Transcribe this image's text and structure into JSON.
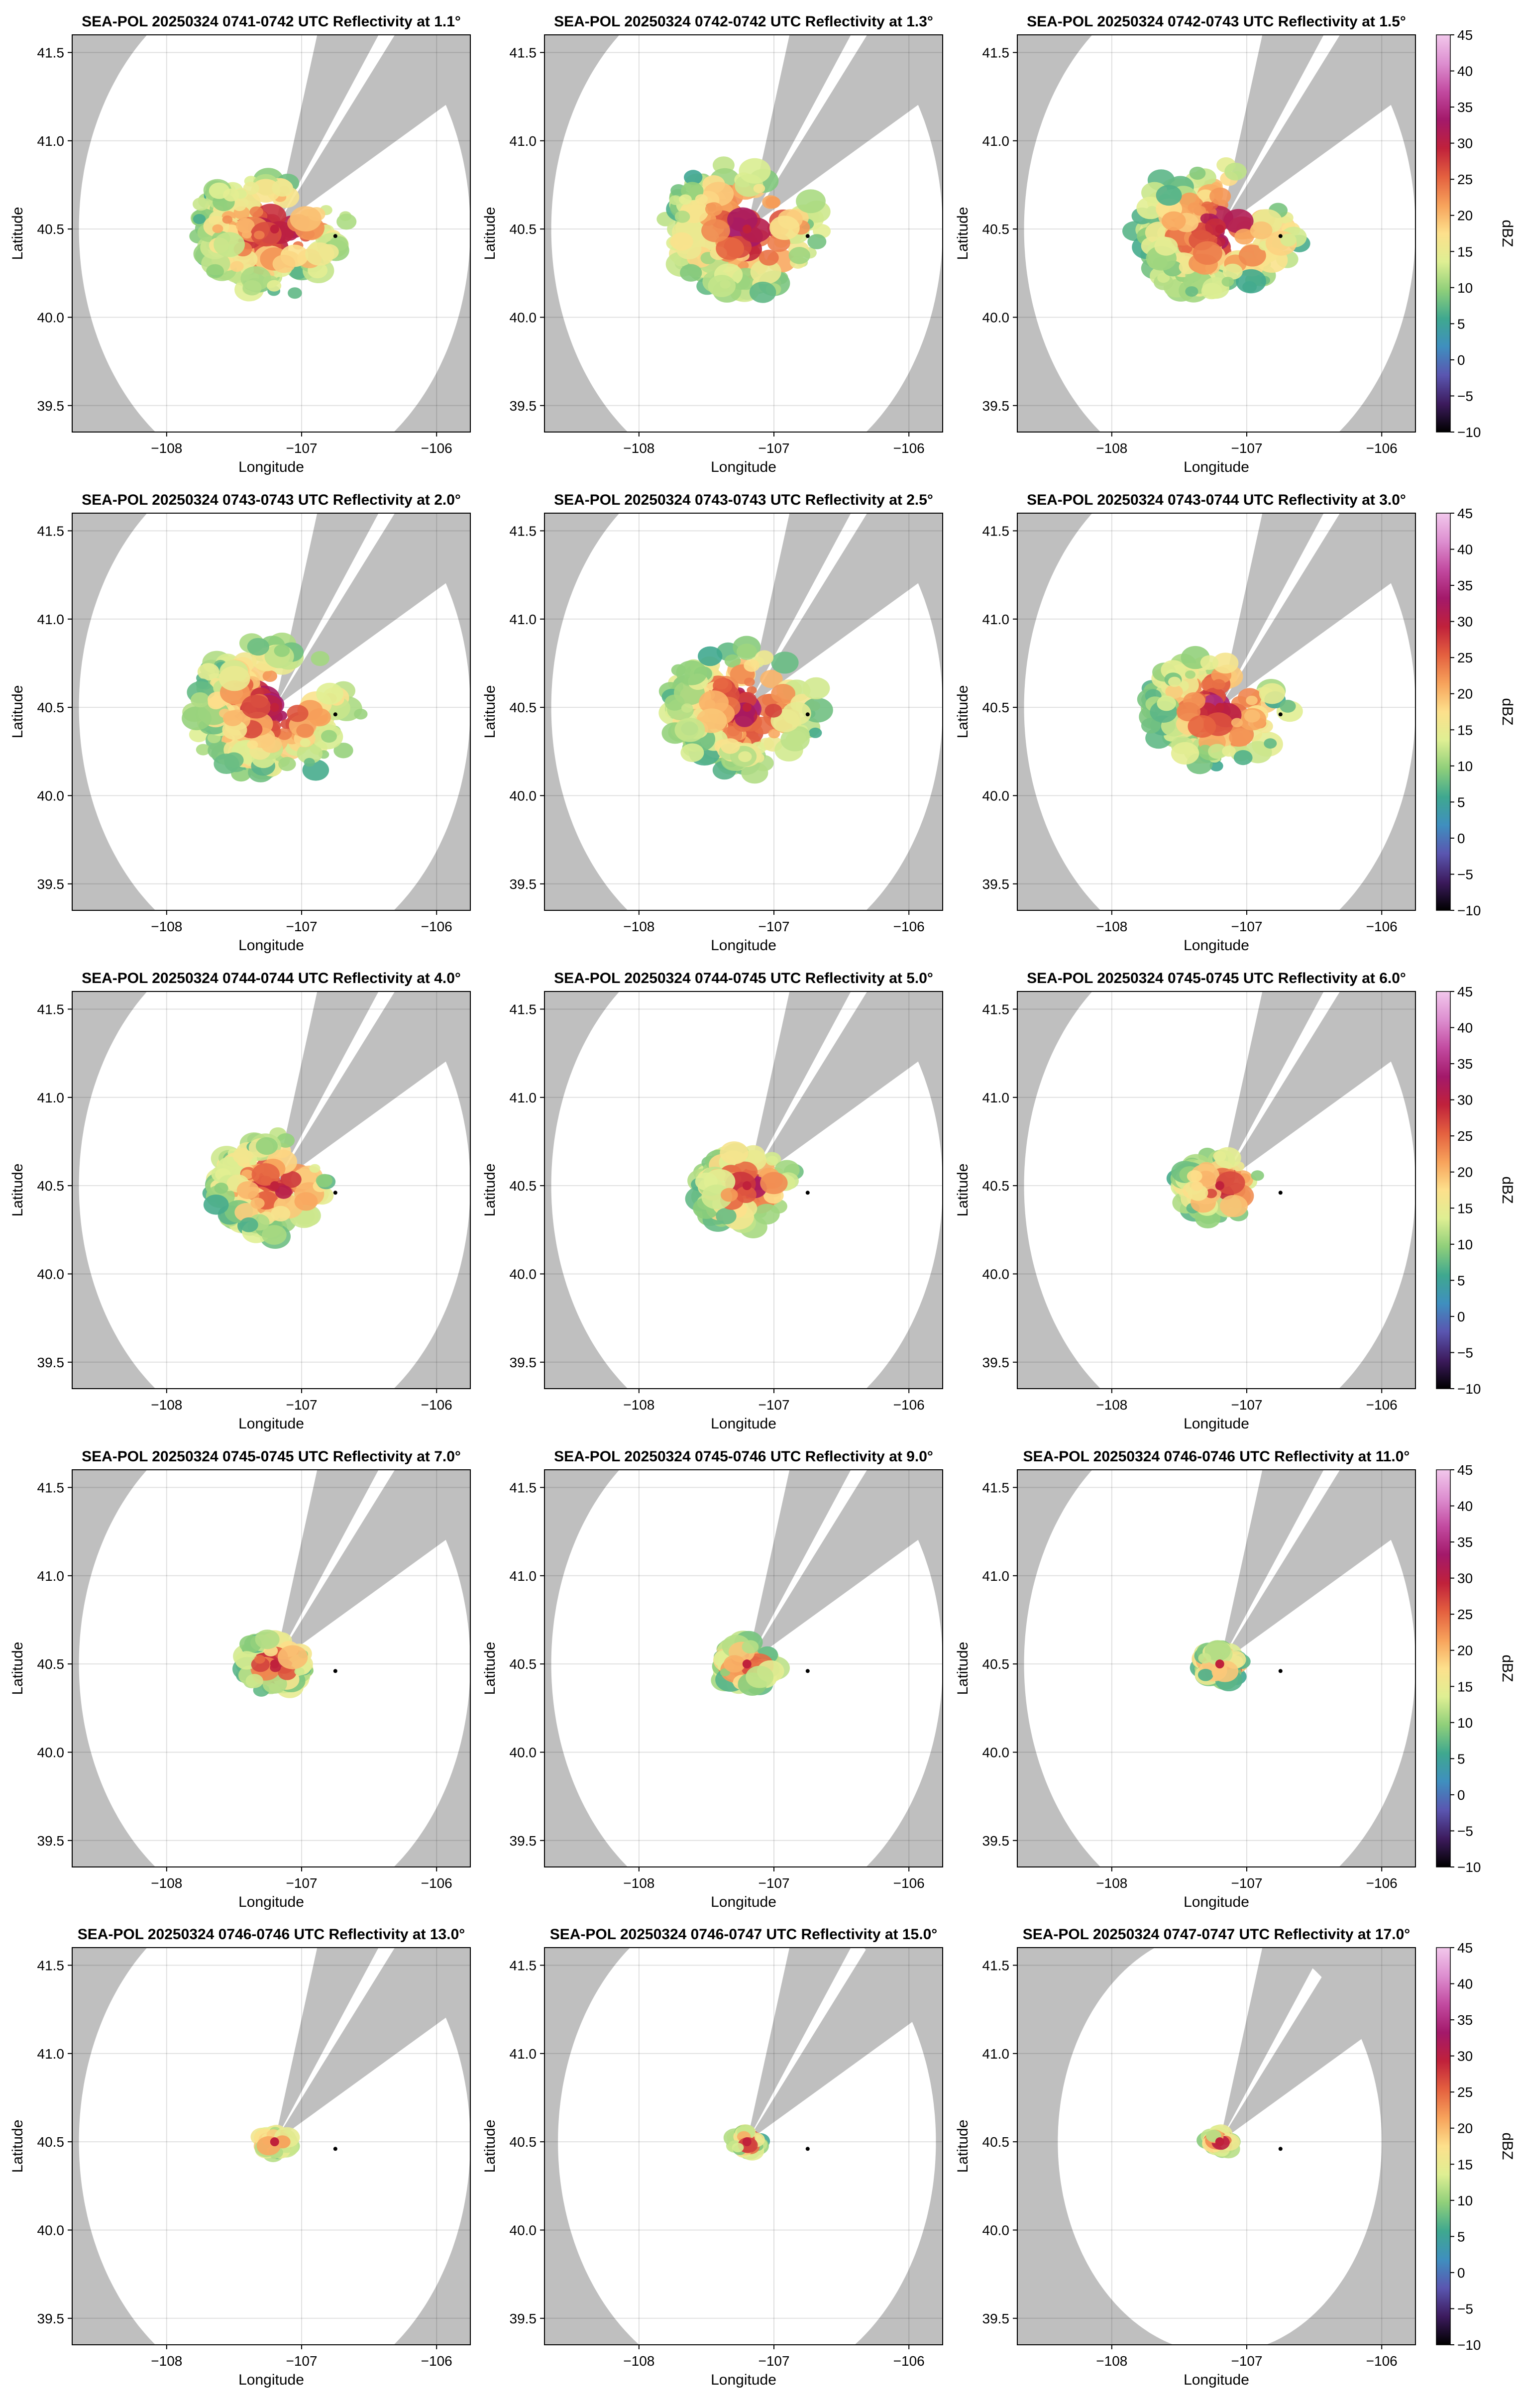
{
  "figure": {
    "rows": 5,
    "cols": 3
  },
  "chart_data": {
    "type": "heatmap",
    "xlabel": "Longitude",
    "ylabel": "Latitude",
    "xlim": [
      -108.7,
      -105.75
    ],
    "ylim": [
      39.35,
      41.6
    ],
    "x_ticks": [
      -108,
      -107,
      -106
    ],
    "x_tick_labels": [
      "−108",
      "−107",
      "−106"
    ],
    "y_ticks": [
      39.5,
      40.0,
      40.5,
      41.0,
      41.5
    ],
    "y_tick_labels": [
      "39.5",
      "40.0",
      "40.5",
      "41.0",
      "41.5"
    ],
    "grid": true,
    "radar_site": {
      "lon": -107.2,
      "lat": 40.5
    },
    "marker": {
      "lon": -106.75,
      "lat": 40.46
    },
    "colorbar": {
      "label": "dBZ",
      "min": -10,
      "max": 45,
      "ticks": [
        -10,
        -5,
        0,
        5,
        10,
        15,
        20,
        25,
        30,
        35,
        40,
        45
      ],
      "tick_labels": [
        "−10",
        "−5",
        "0",
        "5",
        "10",
        "15",
        "20",
        "25",
        "30",
        "35",
        "40",
        "45"
      ]
    },
    "colors": {
      "background": "#bfbfbf",
      "coverage": "#ffffff",
      "colormap": [
        "#000000",
        "#3d1b5e",
        "#5a56b0",
        "#3f8fbf",
        "#3fa88f",
        "#8fcf7a",
        "#dfef93",
        "#fde08c",
        "#f7a25b",
        "#e4603f",
        "#c0213b",
        "#a3196a",
        "#c24aa0",
        "#dd8fd0",
        "#f2c8ec"
      ]
    },
    "panels": [
      {
        "title": "SEA-POL 20250324 0741-0742 UTC Reflectivity at 1.1°",
        "elevation_deg": 1.1,
        "range_deg": 1.45,
        "echo_radius_deg": 0.62
      },
      {
        "title": "SEA-POL 20250324 0742-0742 UTC Reflectivity at 1.3°",
        "elevation_deg": 1.3,
        "range_deg": 1.45,
        "echo_radius_deg": 0.65
      },
      {
        "title": "SEA-POL 20250324 0742-0743 UTC Reflectivity at 1.5°",
        "elevation_deg": 1.5,
        "range_deg": 1.45,
        "echo_radius_deg": 0.66
      },
      {
        "title": "SEA-POL 20250324 0743-0743 UTC Reflectivity at 2.0°",
        "elevation_deg": 2.0,
        "range_deg": 1.45,
        "echo_radius_deg": 0.66
      },
      {
        "title": "SEA-POL 20250324 0743-0743 UTC Reflectivity at 2.5°",
        "elevation_deg": 2.5,
        "range_deg": 1.45,
        "echo_radius_deg": 0.62
      },
      {
        "title": "SEA-POL 20250324 0743-0744 UTC Reflectivity at 3.0°",
        "elevation_deg": 3.0,
        "range_deg": 1.45,
        "echo_radius_deg": 0.55
      },
      {
        "title": "SEA-POL 20250324 0744-0744 UTC Reflectivity at 4.0°",
        "elevation_deg": 4.0,
        "range_deg": 1.45,
        "echo_radius_deg": 0.48
      },
      {
        "title": "SEA-POL 20250324 0744-0745 UTC Reflectivity at 5.0°",
        "elevation_deg": 5.0,
        "range_deg": 1.45,
        "echo_radius_deg": 0.4
      },
      {
        "title": "SEA-POL 20250324 0745-0745 UTC Reflectivity at 6.0°",
        "elevation_deg": 6.0,
        "range_deg": 1.45,
        "echo_radius_deg": 0.33
      },
      {
        "title": "SEA-POL 20250324 0745-0745 UTC Reflectivity at 7.0°",
        "elevation_deg": 7.0,
        "range_deg": 1.45,
        "echo_radius_deg": 0.27
      },
      {
        "title": "SEA-POL 20250324 0745-0746 UTC Reflectivity at 9.0°",
        "elevation_deg": 9.0,
        "range_deg": 1.45,
        "echo_radius_deg": 0.23
      },
      {
        "title": "SEA-POL 20250324 0746-0746 UTC Reflectivity at 11.0°",
        "elevation_deg": 11.0,
        "range_deg": 1.45,
        "echo_radius_deg": 0.17
      },
      {
        "title": "SEA-POL 20250324 0746-0746 UTC Reflectivity at 13.0°",
        "elevation_deg": 13.0,
        "range_deg": 1.45,
        "echo_radius_deg": 0.13
      },
      {
        "title": "SEA-POL 20250324 0746-0747 UTC Reflectivity at 15.0°",
        "elevation_deg": 15.0,
        "range_deg": 1.4,
        "echo_radius_deg": 0.11
      },
      {
        "title": "SEA-POL 20250324 0747-0747 UTC Reflectivity at 17.0°",
        "elevation_deg": 17.0,
        "range_deg": 1.2,
        "echo_radius_deg": 0.1
      }
    ]
  }
}
